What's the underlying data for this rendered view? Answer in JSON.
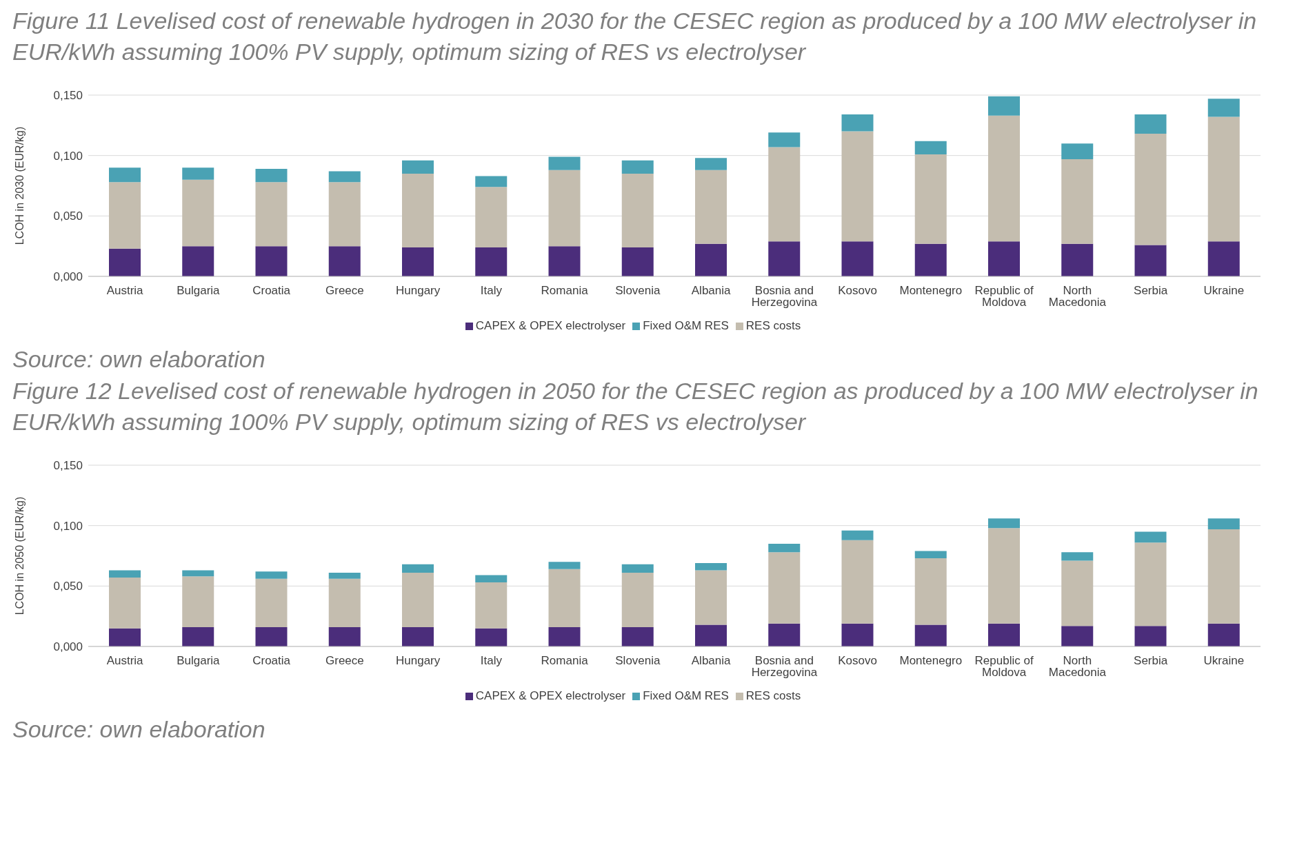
{
  "chart_data": [
    {
      "type": "bar",
      "title": "Figure 11 Levelised cost of renewable hydrogen in 2030 for the CESEC region as produced by a 100 MW electrolyser in EUR/kWh assuming 100% PV supply, optimum sizing of RES vs electrolyser",
      "ylabel": "LCOH in 2030 (EUR/kg)",
      "annotations": [
        "Source: own elaboration"
      ],
      "categories": [
        "Austria",
        "Bulgaria",
        "Croatia",
        "Greece",
        "Hungary",
        "Italy",
        "Romania",
        "Slovenia",
        "Albania",
        "Bosnia and Herzegovina",
        "Kosovo",
        "Montenegro",
        "Republic of Moldova",
        "North Macedonia",
        "Serbia",
        "Ukraine"
      ],
      "series": [
        {
          "name": "CAPEX & OPEX electrolyser",
          "color": "#4b2d7b",
          "values": [
            0.023,
            0.025,
            0.025,
            0.025,
            0.024,
            0.024,
            0.025,
            0.024,
            0.027,
            0.029,
            0.029,
            0.027,
            0.029,
            0.027,
            0.026,
            0.029
          ]
        },
        {
          "name": "RES costs",
          "color": "#c4bdaf",
          "values": [
            0.055,
            0.055,
            0.053,
            0.053,
            0.061,
            0.05,
            0.063,
            0.061,
            0.061,
            0.078,
            0.091,
            0.074,
            0.104,
            0.07,
            0.092,
            0.103
          ]
        },
        {
          "name": "Fixed O&M RES",
          "color": "#4aa2b4",
          "values": [
            0.012,
            0.01,
            0.011,
            0.009,
            0.011,
            0.009,
            0.011,
            0.011,
            0.01,
            0.012,
            0.014,
            0.011,
            0.016,
            0.013,
            0.016,
            0.015
          ]
        }
      ],
      "stacked": true,
      "ylim": [
        0,
        0.15
      ],
      "yticks": [
        {
          "value": 0,
          "label": "0,000"
        },
        {
          "value": 0.05,
          "label": "0,050"
        },
        {
          "value": 0.1,
          "label": "0,100"
        },
        {
          "value": 0.15,
          "label": "0,150"
        }
      ],
      "grid": "y",
      "legend": "bottom"
    },
    {
      "type": "bar",
      "title": "Figure 12 Levelised cost of renewable hydrogen in 2050 for the CESEC region as produced by a 100 MW electrolyser in EUR/kWh assuming 100% PV supply, optimum sizing of RES vs electrolyser",
      "ylabel": "LCOH in 2050 (EUR/kg)",
      "annotations": [
        "Source: own elaboration"
      ],
      "categories": [
        "Austria",
        "Bulgaria",
        "Croatia",
        "Greece",
        "Hungary",
        "Italy",
        "Romania",
        "Slovenia",
        "Albania",
        "Bosnia and Herzegovina",
        "Kosovo",
        "Montenegro",
        "Republic of Moldova",
        "North Macedonia",
        "Serbia",
        "Ukraine"
      ],
      "series": [
        {
          "name": "CAPEX & OPEX electrolyser",
          "color": "#4b2d7b",
          "values": [
            0.015,
            0.016,
            0.016,
            0.016,
            0.016,
            0.015,
            0.016,
            0.016,
            0.018,
            0.019,
            0.019,
            0.018,
            0.019,
            0.017,
            0.017,
            0.019
          ]
        },
        {
          "name": "RES costs",
          "color": "#c4bdaf",
          "values": [
            0.042,
            0.042,
            0.04,
            0.04,
            0.045,
            0.038,
            0.048,
            0.045,
            0.045,
            0.059,
            0.069,
            0.055,
            0.079,
            0.054,
            0.069,
            0.078
          ]
        },
        {
          "name": "Fixed O&M RES",
          "color": "#4aa2b4",
          "values": [
            0.006,
            0.005,
            0.006,
            0.005,
            0.007,
            0.006,
            0.006,
            0.007,
            0.006,
            0.007,
            0.008,
            0.006,
            0.008,
            0.007,
            0.009,
            0.009
          ]
        }
      ],
      "stacked": true,
      "ylim": [
        0,
        0.15
      ],
      "yticks": [
        {
          "value": 0,
          "label": "0,000"
        },
        {
          "value": 0.05,
          "label": "0,050"
        },
        {
          "value": 0.1,
          "label": "0,100"
        },
        {
          "value": 0.15,
          "label": "0,150"
        }
      ],
      "grid": "y",
      "legend": "bottom"
    }
  ]
}
